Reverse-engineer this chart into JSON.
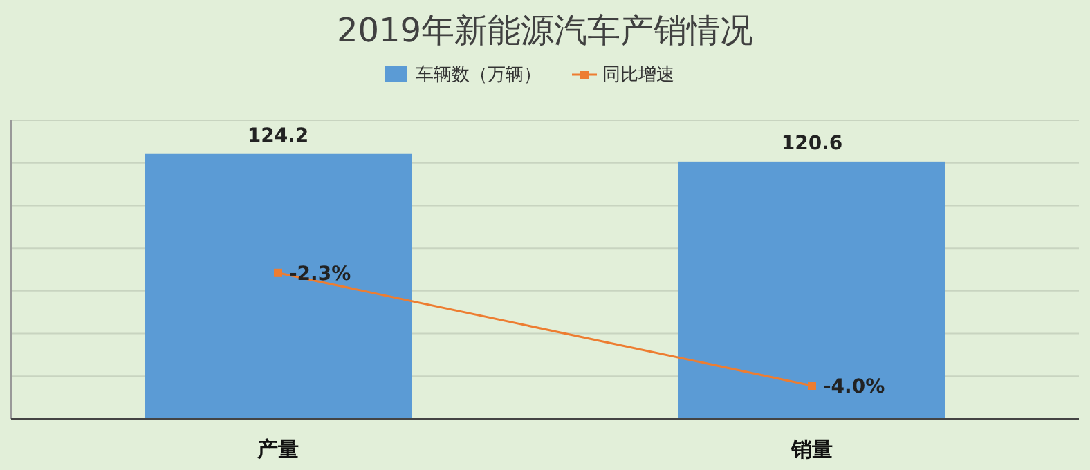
{
  "chart_data": {
    "type": "bar",
    "title": "2019年新能源汽车产销情况",
    "categories": [
      "产量",
      "销量"
    ],
    "series": [
      {
        "name": "车辆数（万辆）",
        "color": "#5b9bd5",
        "values": [
          124.2,
          120.6
        ]
      },
      {
        "name": "同比增速",
        "type": "line",
        "axis": "y2",
        "color": "#ed7d31",
        "values": [
          -2.3,
          -4.0
        ],
        "value_labels": [
          "-2.3%",
          "-4.0%"
        ],
        "marker": "square"
      }
    ],
    "ylim": [
      0,
      140
    ],
    "yticks": [
      {
        "value": 0,
        "label": null
      },
      {
        "value": 20,
        "label": null
      },
      {
        "value": 40,
        "label": null
      },
      {
        "value": 60,
        "label": null
      },
      {
        "value": 80,
        "label": null
      },
      {
        "value": 100,
        "label": null
      },
      {
        "value": 120,
        "label": null
      },
      {
        "value": 140,
        "label": null
      }
    ],
    "y2lim": [
      -4.5,
      0
    ],
    "tick_labels": "x",
    "grid": "y",
    "legend": "top",
    "data_labels": true
  }
}
